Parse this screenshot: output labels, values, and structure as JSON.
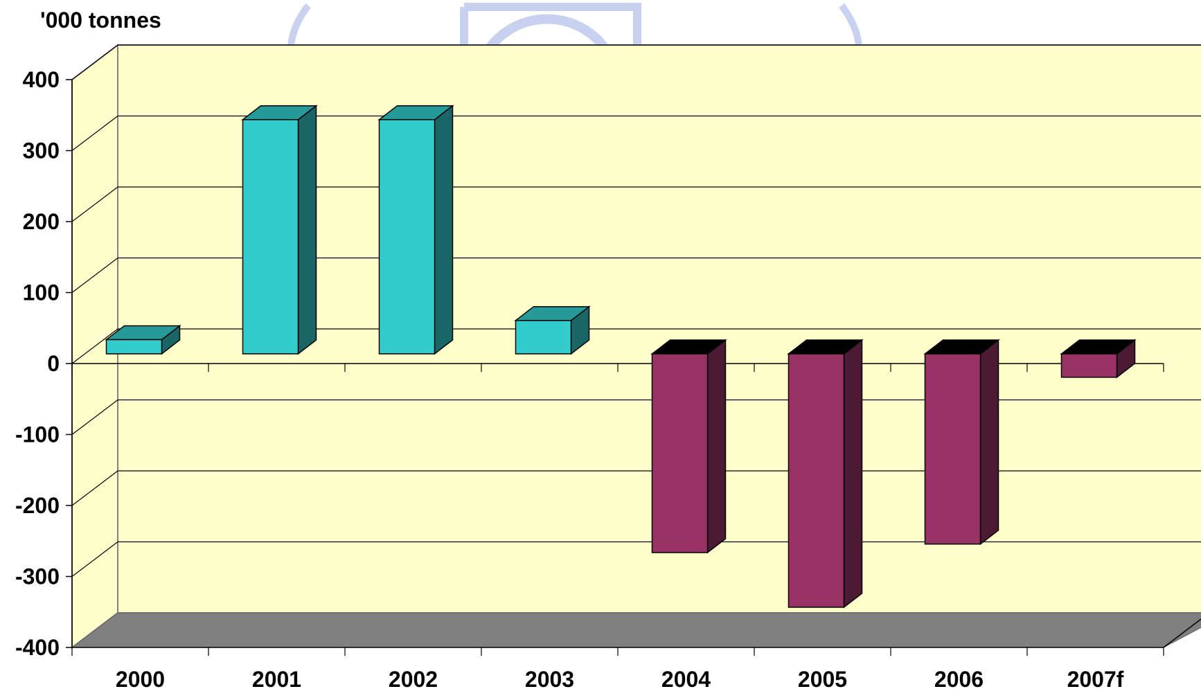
{
  "chart_data": {
    "type": "bar",
    "title": "",
    "ylabel": "'000 tonnes",
    "xlabel": "",
    "categories": [
      "2000",
      "2001",
      "2002",
      "2003",
      "2004",
      "2005",
      "2006",
      "2007f"
    ],
    "values": [
      20,
      330,
      330,
      47,
      -280,
      -357,
      -268,
      -33
    ],
    "ylim": [
      -400,
      400
    ],
    "yticks": [
      "400",
      "300",
      "200",
      "100",
      "0",
      "-100",
      "-200",
      "-300",
      "-400"
    ],
    "ytick_values": [
      400,
      300,
      200,
      100,
      0,
      -100,
      -200,
      -300,
      -400
    ],
    "grid": true,
    "three_d": true,
    "colors": {
      "positive_front": "#33CCCC",
      "positive_side": "#1A6666",
      "positive_top": "#269999",
      "negative_front": "#993366",
      "negative_side": "#4D1A33",
      "negative_top": "#000000",
      "wall": "#FFFFCC",
      "floor": "#808080",
      "watermark": "#C8D2F0"
    }
  }
}
